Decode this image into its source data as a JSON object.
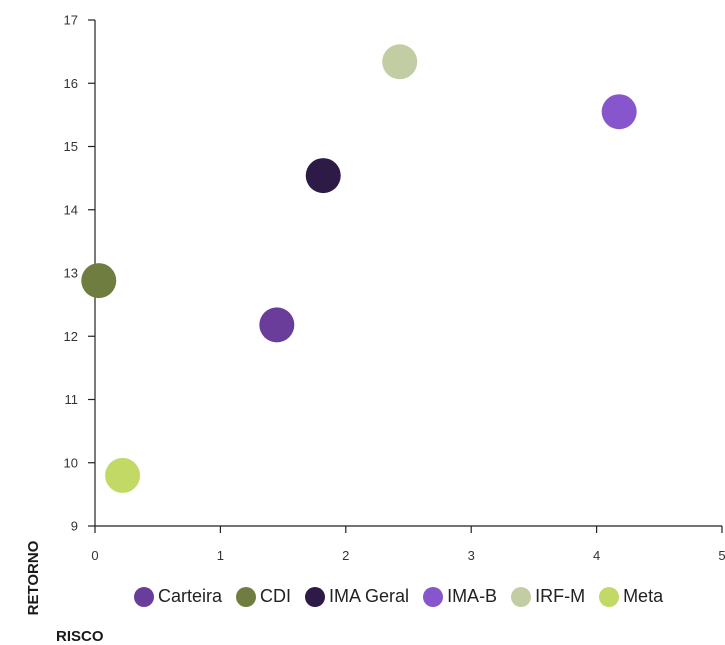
{
  "chart_data": {
    "type": "scatter",
    "xlabel": "RISCO",
    "ylabel": "RETORNO",
    "xlim": [
      0,
      5
    ],
    "ylim": [
      9,
      17
    ],
    "x_ticks": [
      "0",
      "1",
      "2",
      "3",
      "4",
      "5"
    ],
    "y_ticks": [
      "9",
      "10",
      "11",
      "12",
      "13",
      "14",
      "15",
      "16",
      "17"
    ],
    "grid": false,
    "legend_position": "bottom",
    "series": [
      {
        "name": "Carteira",
        "color": "#6a3d9a",
        "x": 1.45,
        "y": 12.18
      },
      {
        "name": "CDI",
        "color": "#6f7d40",
        "x": 0.03,
        "y": 12.88
      },
      {
        "name": "IMA Geral",
        "color": "#2e1a47",
        "x": 1.82,
        "y": 14.54
      },
      {
        "name": "IMA-B",
        "color": "#8856cc",
        "x": 4.18,
        "y": 15.55
      },
      {
        "name": "IRF-M",
        "color": "#c3cda3",
        "x": 2.43,
        "y": 16.34
      },
      {
        "name": "Meta",
        "color": "#c2d965",
        "x": 0.22,
        "y": 9.8
      }
    ]
  }
}
